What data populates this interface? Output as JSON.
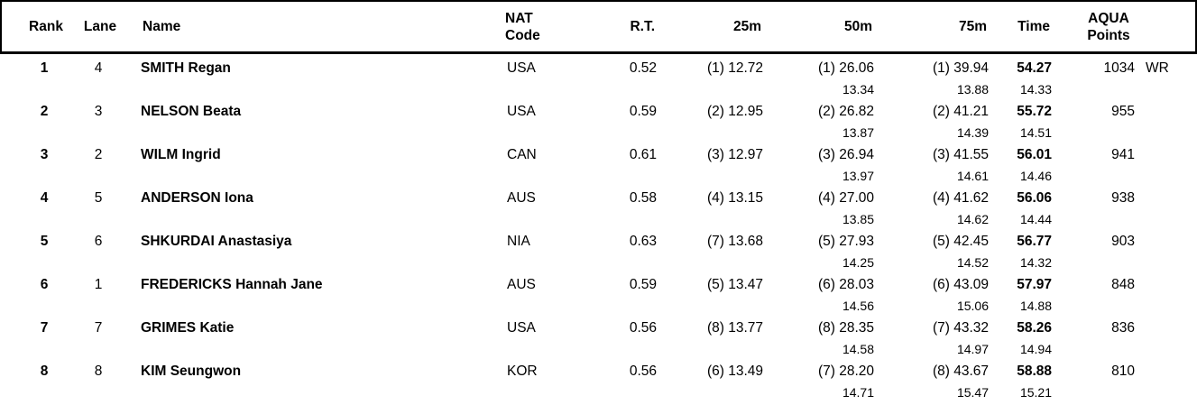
{
  "colors": {
    "text": "#000000",
    "border": "#000000",
    "background": "#ffffff"
  },
  "table": {
    "header": {
      "rank": "Rank",
      "lane": "Lane",
      "name": "Name",
      "nat_line1": "NAT",
      "nat_line2": "Code",
      "rt": "R.T.",
      "m25": "25m",
      "m50": "50m",
      "m75": "75m",
      "time": "Time",
      "aqua_line1": "AQUA",
      "aqua_line2": "Points"
    },
    "rows": [
      {
        "rank": "1",
        "lane": "4",
        "name": "SMITH Regan",
        "nat": "USA",
        "rt": "0.52",
        "m25": "(1) 12.72",
        "m50": "(1) 26.06",
        "m50_split": "13.34",
        "m75": "(1) 39.94",
        "m75_split": "13.88",
        "time": "54.27",
        "time_split": "14.33",
        "points": "1034",
        "note": "WR"
      },
      {
        "rank": "2",
        "lane": "3",
        "name": "NELSON Beata",
        "nat": "USA",
        "rt": "0.59",
        "m25": "(2) 12.95",
        "m50": "(2) 26.82",
        "m50_split": "13.87",
        "m75": "(2) 41.21",
        "m75_split": "14.39",
        "time": "55.72",
        "time_split": "14.51",
        "points": "955",
        "note": ""
      },
      {
        "rank": "3",
        "lane": "2",
        "name": "WILM Ingrid",
        "nat": "CAN",
        "rt": "0.61",
        "m25": "(3) 12.97",
        "m50": "(3) 26.94",
        "m50_split": "13.97",
        "m75": "(3) 41.55",
        "m75_split": "14.61",
        "time": "56.01",
        "time_split": "14.46",
        "points": "941",
        "note": ""
      },
      {
        "rank": "4",
        "lane": "5",
        "name": "ANDERSON Iona",
        "nat": "AUS",
        "rt": "0.58",
        "m25": "(4) 13.15",
        "m50": "(4) 27.00",
        "m50_split": "13.85",
        "m75": "(4) 41.62",
        "m75_split": "14.62",
        "time": "56.06",
        "time_split": "14.44",
        "points": "938",
        "note": ""
      },
      {
        "rank": "5",
        "lane": "6",
        "name": "SHKURDAI Anastasiya",
        "nat": "NIA",
        "rt": "0.63",
        "m25": "(7) 13.68",
        "m50": "(5) 27.93",
        "m50_split": "14.25",
        "m75": "(5) 42.45",
        "m75_split": "14.52",
        "time": "56.77",
        "time_split": "14.32",
        "points": "903",
        "note": ""
      },
      {
        "rank": "6",
        "lane": "1",
        "name": "FREDERICKS Hannah Jane",
        "nat": "AUS",
        "rt": "0.59",
        "m25": "(5) 13.47",
        "m50": "(6) 28.03",
        "m50_split": "14.56",
        "m75": "(6) 43.09",
        "m75_split": "15.06",
        "time": "57.97",
        "time_split": "14.88",
        "points": "848",
        "note": ""
      },
      {
        "rank": "7",
        "lane": "7",
        "name": "GRIMES Katie",
        "nat": "USA",
        "rt": "0.56",
        "m25": "(8) 13.77",
        "m50": "(8) 28.35",
        "m50_split": "14.58",
        "m75": "(7) 43.32",
        "m75_split": "14.97",
        "time": "58.26",
        "time_split": "14.94",
        "points": "836",
        "note": ""
      },
      {
        "rank": "8",
        "lane": "8",
        "name": "KIM Seungwon",
        "nat": "KOR",
        "rt": "0.56",
        "m25": "(6) 13.49",
        "m50": "(7) 28.20",
        "m50_split": "14.71",
        "m75": "(8) 43.67",
        "m75_split": "15.47",
        "time": "58.88",
        "time_split": "15.21",
        "points": "810",
        "note": ""
      }
    ]
  }
}
